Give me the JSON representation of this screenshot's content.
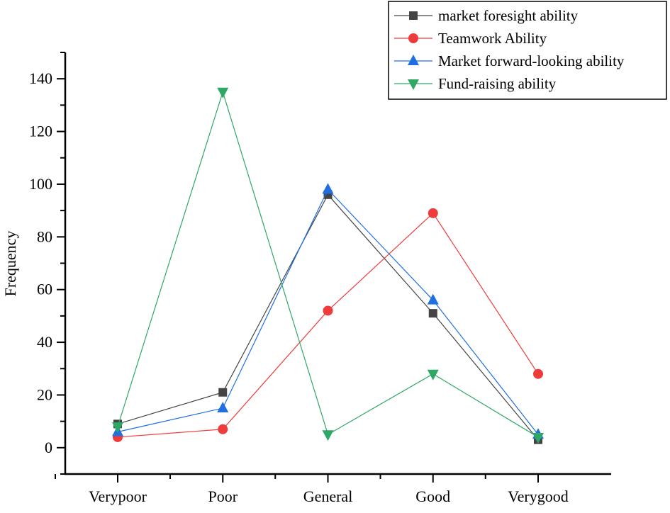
{
  "chart_data": {
    "type": "line",
    "title": "",
    "xlabel": "",
    "ylabel": "Frequency",
    "categories": [
      "Verypoor",
      "Poor",
      "General",
      "Good",
      "Verygood"
    ],
    "ylim": [
      -10,
      150
    ],
    "yticks": [
      0,
      20,
      40,
      60,
      80,
      100,
      120,
      140
    ],
    "grid": false,
    "legend_position": "top-right",
    "series": [
      {
        "name": "market foresight ability",
        "color": "#444444",
        "marker": "square",
        "values": [
          9,
          21,
          96,
          51,
          3
        ]
      },
      {
        "name": "Teamwork Ability",
        "color": "#ef3b3b",
        "marker": "circle",
        "values": [
          4,
          7,
          52,
          89,
          28
        ]
      },
      {
        "name": "Market forward-looking ability",
        "color": "#1f6fe0",
        "marker": "triangle-up",
        "values": [
          6,
          15,
          98,
          56,
          5
        ]
      },
      {
        "name": "Fund-raising ability",
        "color": "#2fa866",
        "marker": "triangle-down",
        "values": [
          8,
          135,
          5,
          28,
          4
        ]
      }
    ]
  }
}
